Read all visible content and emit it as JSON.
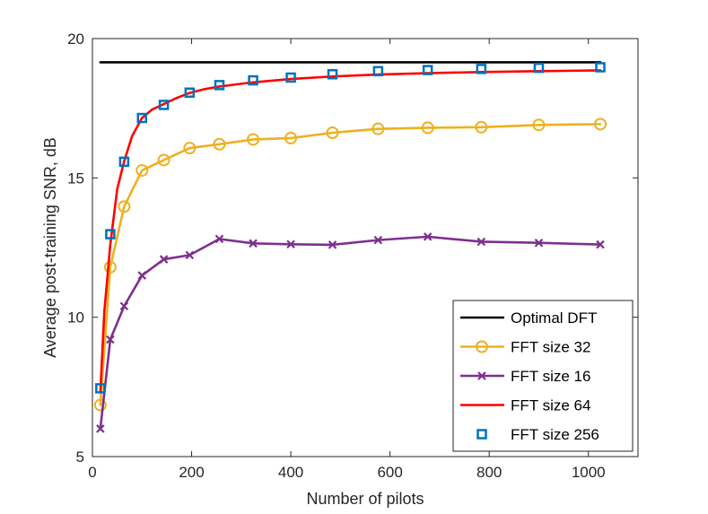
{
  "chart_data": {
    "type": "line",
    "title": "",
    "xlabel": "Number of pilots",
    "ylabel": "Average post-training SNR, dB",
    "xlim": [
      0,
      1100
    ],
    "ylim": [
      5,
      20
    ],
    "xticks": [
      0,
      200,
      400,
      600,
      800,
      1000
    ],
    "yticks": [
      5,
      10,
      15,
      20
    ],
    "xtick_labels": [
      "0",
      "200",
      "400",
      "600",
      "800",
      "1000"
    ],
    "ytick_labels": [
      "5",
      "10",
      "15",
      "20"
    ],
    "grid": false,
    "legend_position": "bottom-right",
    "series": [
      {
        "name": "Optimal DFT",
        "color": "#000000",
        "line": true,
        "marker": "none",
        "x": [
          16,
          1024
        ],
        "y": [
          19.15,
          19.15
        ]
      },
      {
        "name": "FFT size 32",
        "color": "#EDB120",
        "line": true,
        "marker": "circle",
        "x": [
          16,
          36,
          64,
          100,
          144,
          196,
          256,
          324,
          400,
          484,
          576,
          676,
          784,
          900,
          1024
        ],
        "y": [
          6.85,
          11.8,
          13.97,
          15.27,
          15.64,
          16.07,
          16.21,
          16.38,
          16.43,
          16.62,
          16.76,
          16.8,
          16.82,
          16.9,
          16.93
        ]
      },
      {
        "name": "FFT size 16",
        "color": "#7E2F8E",
        "line": true,
        "marker": "x",
        "x": [
          16,
          36,
          64,
          100,
          144,
          196,
          256,
          324,
          400,
          484,
          576,
          676,
          784,
          900,
          1024
        ],
        "y": [
          6.0,
          9.2,
          10.4,
          11.5,
          12.08,
          12.23,
          12.81,
          12.65,
          12.62,
          12.6,
          12.77,
          12.89,
          12.71,
          12.67,
          12.61
        ]
      },
      {
        "name": "FFT size 64",
        "color": "#FF0000",
        "line": true,
        "marker": "none",
        "x": [
          16,
          24,
          36,
          50,
          64,
          80,
          100,
          120,
          144,
          170,
          196,
          225,
          256,
          324,
          400,
          484,
          576,
          676,
          784,
          900,
          1024
        ],
        "y": [
          7.3,
          10.2,
          12.6,
          14.6,
          15.6,
          16.5,
          17.15,
          17.45,
          17.65,
          17.87,
          18.05,
          18.18,
          18.28,
          18.43,
          18.55,
          18.64,
          18.71,
          18.76,
          18.8,
          18.83,
          18.86
        ]
      },
      {
        "name": "FFT size 256",
        "color": "#0072BD",
        "line": false,
        "marker": "square",
        "x": [
          16,
          36,
          64,
          100,
          144,
          196,
          256,
          324,
          400,
          484,
          576,
          676,
          784,
          900,
          1024
        ],
        "y": [
          7.45,
          12.98,
          15.58,
          17.15,
          17.62,
          18.06,
          18.33,
          18.5,
          18.6,
          18.72,
          18.83,
          18.87,
          18.91,
          18.95,
          18.97
        ]
      }
    ]
  }
}
